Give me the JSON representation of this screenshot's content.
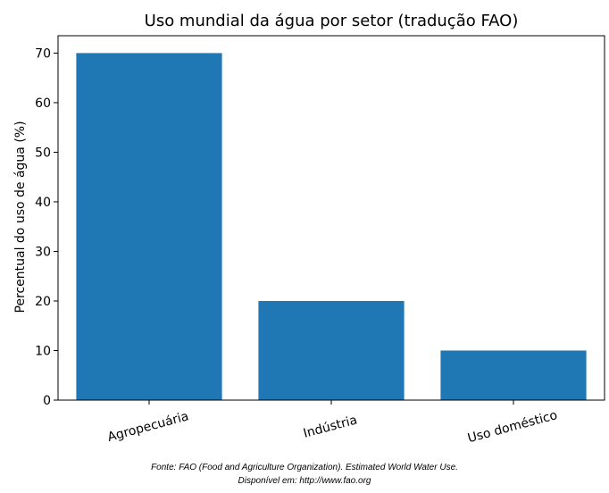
{
  "chart_data": {
    "type": "bar",
    "title": "Uso mundial da água por setor (tradução FAO)",
    "xlabel": "",
    "ylabel": "Percentual do uso de água (%)",
    "categories": [
      "Agropecuária",
      "Indústria",
      "Uso doméstico"
    ],
    "values": [
      70,
      20,
      10
    ],
    "ylim": [
      0,
      73.5
    ],
    "yticks": [
      0,
      10,
      20,
      30,
      40,
      50,
      60,
      70
    ],
    "bar_color": "#1f77b4",
    "grid": false,
    "legend": "none"
  },
  "caption": {
    "line1": "Fonte: FAO (Food and Agriculture Organization). Estimated World Water Use.",
    "line2": "Disponível em: http://www.fao.org"
  }
}
